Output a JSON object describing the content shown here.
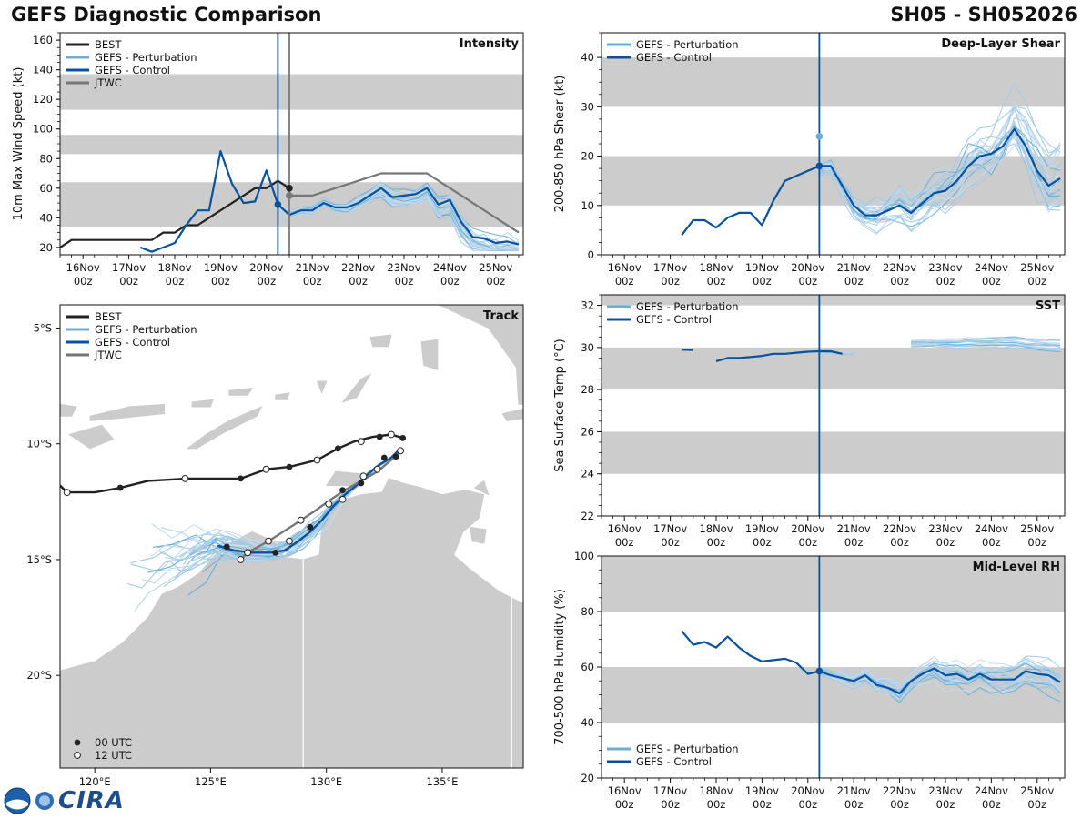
{
  "header": {
    "title": "GEFS Diagnostic Comparison",
    "storm": "SH05 - SH052026"
  },
  "colors": {
    "best": "#222222",
    "perturbation": "#6baed6",
    "control": "#08519c",
    "jtwc": "#777777",
    "band": "#cccccc",
    "land": "#cccccc"
  },
  "logo": {
    "text": "CIRA"
  },
  "time_ticks": [
    {
      "day": "16Nov",
      "hour": "00z"
    },
    {
      "day": "17Nov",
      "hour": "00z"
    },
    {
      "day": "18Nov",
      "hour": "00z"
    },
    {
      "day": "19Nov",
      "hour": "00z"
    },
    {
      "day": "20Nov",
      "hour": "00z"
    },
    {
      "day": "21Nov",
      "hour": "00z"
    },
    {
      "day": "22Nov",
      "hour": "00z"
    },
    {
      "day": "23Nov",
      "hour": "00z"
    },
    {
      "day": "24Nov",
      "hour": "00z"
    },
    {
      "day": "25Nov",
      "hour": "00z"
    }
  ],
  "chart_data": [
    {
      "type": "line",
      "title": "Intensity",
      "ylabel": "10m Max Wind Speed (kt)",
      "xlim": [
        -0.5,
        9.6
      ],
      "ylim": [
        15,
        165
      ],
      "yticks": [
        20,
        40,
        60,
        80,
        100,
        120,
        140,
        160
      ],
      "bands": [
        [
          34,
          64
        ],
        [
          83,
          96
        ],
        [
          113,
          137
        ]
      ],
      "vlines": [
        {
          "x": 4.25,
          "series": "control"
        },
        {
          "x": 4.5,
          "series": "jtwc"
        }
      ],
      "legend": [
        "BEST",
        "GEFS - Perturbation",
        "GEFS - Control",
        "JTWC"
      ],
      "series": [
        {
          "name": "BEST",
          "x": [
            -0.5,
            -0.25,
            0,
            0.25,
            0.5,
            0.75,
            1,
            1.25,
            1.5,
            1.75,
            2,
            2.25,
            2.5,
            2.75,
            3,
            3.25,
            3.5,
            3.75,
            4,
            4.25,
            4.5
          ],
          "y": [
            20,
            25,
            25,
            25,
            25,
            25,
            25,
            25,
            25,
            30,
            30,
            35,
            35,
            40,
            45,
            50,
            55,
            60,
            60,
            65,
            60
          ]
        },
        {
          "name": "GEFS - Control",
          "x": [
            1.25,
            1.5,
            1.75,
            2,
            2.25,
            2.5,
            2.75,
            3,
            3.25,
            3.5,
            3.75,
            4,
            4.25,
            4.5,
            4.75,
            5,
            5.25,
            5.5,
            5.75,
            6,
            6.25,
            6.5,
            6.75,
            7,
            7.25,
            7.5,
            7.75,
            8,
            8.25,
            8.5,
            8.75,
            9,
            9.25,
            9.5
          ],
          "y": [
            20,
            17,
            20,
            23,
            35,
            45,
            45,
            85,
            63,
            50,
            51,
            72,
            49,
            42,
            45,
            45,
            50,
            47,
            47,
            50,
            55,
            60,
            54,
            55,
            56,
            60,
            49,
            52,
            37,
            27,
            26,
            23,
            24,
            22
          ]
        },
        {
          "name": "JTWC",
          "x": [
            4.5,
            5,
            5.5,
            6,
            6.5,
            7,
            7.5,
            9.5
          ],
          "y": [
            55,
            55,
            60,
            65,
            70,
            70,
            70,
            30
          ]
        }
      ],
      "markers": [
        {
          "x": 4.25,
          "y": 49,
          "series": "control"
        },
        {
          "x": 4.5,
          "y": 60,
          "series": "best"
        },
        {
          "x": 4.5,
          "y": 55,
          "series": "jtwc"
        }
      ]
    },
    {
      "type": "line",
      "title": "Deep-Layer Shear",
      "ylabel": "200-850 hPa Shear (kt)",
      "xlim": [
        -0.5,
        9.6
      ],
      "ylim": [
        0,
        45
      ],
      "yticks": [
        0,
        10,
        20,
        30,
        40
      ],
      "bands": [
        [
          10,
          20
        ],
        [
          30,
          40
        ]
      ],
      "vlines": [
        {
          "x": 4.25,
          "series": "control"
        }
      ],
      "legend": [
        "GEFS - Perturbation",
        "GEFS - Control"
      ],
      "series": [
        {
          "name": "GEFS - Control",
          "x": [
            1.25,
            1.5,
            1.75,
            2,
            2.25,
            2.5,
            2.75,
            3,
            3.25,
            3.5,
            3.75,
            4,
            4.25,
            4.5,
            4.75,
            5,
            5.25,
            5.5,
            5.75,
            6,
            6.25,
            6.5,
            6.75,
            7,
            7.25,
            7.5,
            7.75,
            8,
            8.25,
            8.5,
            8.75,
            9,
            9.25,
            9.5
          ],
          "y": [
            4,
            7,
            7,
            5.5,
            7.5,
            8.5,
            8.5,
            6,
            11,
            15,
            16,
            17,
            18,
            18,
            14,
            10,
            8,
            8,
            9,
            10,
            8.5,
            10.5,
            12.5,
            13,
            15,
            18,
            20,
            20.5,
            22,
            25.5,
            22,
            17,
            14,
            15.5
          ]
        }
      ],
      "markers": [
        {
          "x": 4.25,
          "y": 18,
          "series": "control"
        },
        {
          "x": 4.25,
          "y": 24,
          "series": "perturbation"
        }
      ]
    },
    {
      "type": "line",
      "title": "SST",
      "ylabel": "Sea Surface Temp (°C)",
      "xlim": [
        -0.5,
        9.6
      ],
      "ylim": [
        22,
        32.5
      ],
      "yticks": [
        22,
        24,
        26,
        28,
        30,
        32
      ],
      "bands": [
        [
          24,
          26
        ],
        [
          28,
          30
        ],
        [
          32,
          32.5
        ]
      ],
      "vlines": [
        {
          "x": 4.25,
          "series": "control"
        }
      ],
      "legend": [
        "GEFS - Perturbation",
        "GEFS - Control"
      ],
      "series": [
        {
          "name": "GEFS - Control",
          "segments": [
            {
              "x": [
                1.25,
                1.5
              ],
              "y": [
                29.9,
                29.88
              ]
            },
            {
              "x": [
                2,
                2.25,
                2.5,
                2.75,
                3,
                3.25,
                3.5,
                3.75,
                4,
                4.25,
                4.5,
                4.75
              ],
              "y": [
                29.35,
                29.5,
                29.5,
                29.55,
                29.6,
                29.7,
                29.7,
                29.75,
                29.8,
                29.82,
                29.82,
                29.7
              ]
            }
          ]
        }
      ]
    },
    {
      "type": "line",
      "title": "Mid-Level RH",
      "ylabel": "700-500 hPa Humidity (%)",
      "xlim": [
        -0.5,
        9.6
      ],
      "ylim": [
        20,
        100
      ],
      "yticks": [
        20,
        40,
        60,
        80,
        100
      ],
      "bands": [
        [
          40,
          60
        ],
        [
          80,
          100
        ]
      ],
      "vlines": [
        {
          "x": 4.25,
          "series": "control"
        }
      ],
      "legend": [
        "GEFS - Perturbation",
        "GEFS - Control"
      ],
      "series": [
        {
          "name": "GEFS - Control",
          "x": [
            1.25,
            1.5,
            1.75,
            2,
            2.25,
            2.5,
            2.75,
            3,
            3.25,
            3.5,
            3.75,
            4,
            4.25,
            4.5,
            4.75,
            5,
            5.25,
            5.5,
            5.75,
            6,
            6.25,
            6.5,
            6.75,
            7,
            7.25,
            7.5,
            7.75,
            8,
            8.25,
            8.5,
            8.75,
            9,
            9.25,
            9.5
          ],
          "y": [
            73,
            68,
            69,
            67,
            71,
            67,
            64,
            62,
            62.5,
            63,
            61.5,
            57.5,
            58.5,
            57,
            56,
            55,
            57,
            53.5,
            52.5,
            50.5,
            55,
            57.5,
            59.5,
            57,
            57.5,
            55.5,
            57.5,
            55.5,
            55.5,
            55.5,
            58.5,
            57.5,
            57,
            54.5
          ]
        }
      ],
      "markers": [
        {
          "x": 4.25,
          "y": 58.5,
          "series": "control"
        }
      ]
    },
    {
      "type": "map",
      "title": "Track",
      "lon_range": [
        118.5,
        138.5
      ],
      "lat_range": [
        -24,
        -4
      ],
      "xticks": [
        {
          "v": 120,
          "label": "120°E"
        },
        {
          "v": 125,
          "label": "125°E"
        },
        {
          "v": 130,
          "label": "130°E"
        },
        {
          "v": 135,
          "label": "135°E"
        }
      ],
      "yticks": [
        {
          "v": -5,
          "label": "5°S"
        },
        {
          "v": -10,
          "label": "10°S"
        },
        {
          "v": -15,
          "label": "15°S"
        },
        {
          "v": -20,
          "label": "20°S"
        }
      ],
      "legend": [
        "BEST",
        "GEFS - Perturbation",
        "GEFS - Control",
        "JTWC"
      ],
      "marker_legend": [
        "00 UTC",
        "12 UTC"
      ],
      "series": [
        {
          "name": "BEST",
          "lon": [
            118.5,
            118.8,
            119.2,
            120,
            121.1,
            122.3,
            124,
            125.5,
            126.3,
            127.4,
            128.4,
            129.6,
            130.5,
            131.2,
            132,
            132.8,
            133.3
          ],
          "lat": [
            -11.8,
            -12.1,
            -12.1,
            -12.1,
            -11.9,
            -11.6,
            -11.5,
            -11.5,
            -11.5,
            -11.1,
            -11.0,
            -10.7,
            -10.2,
            -9.9,
            -9.7,
            -9.6,
            -9.75
          ]
        },
        {
          "name": "GEFS - Control",
          "lon": [
            125.3,
            126,
            126.8,
            127.6,
            128.2,
            128.8,
            129.3,
            129.8,
            130.3,
            130.8,
            131.3,
            131.8,
            132.3,
            132.8,
            133.2
          ],
          "lat": [
            -14.4,
            -14.6,
            -14.7,
            -14.7,
            -14.6,
            -14.2,
            -13.8,
            -13.3,
            -12.7,
            -12.2,
            -11.8,
            -11.3,
            -10.9,
            -10.6,
            -10.2
          ]
        },
        {
          "name": "JTWC",
          "lon": [
            126.3,
            126.6,
            127.5,
            128.6,
            129.5,
            130.2,
            130.8,
            131.5,
            132.2,
            132.8,
            133.2
          ],
          "lat": [
            -15.0,
            -14.7,
            -14.2,
            -13.5,
            -12.9,
            -12.4,
            -12.0,
            -11.6,
            -11.2,
            -10.7,
            -10.3
          ]
        }
      ],
      "markers_00z": [
        {
          "lon": 121.1,
          "lat": -11.9
        },
        {
          "lon": 126.3,
          "lat": -11.5
        },
        {
          "lon": 128.4,
          "lat": -11.0
        },
        {
          "lon": 130.5,
          "lat": -10.2
        },
        {
          "lon": 132.3,
          "lat": -9.7
        },
        {
          "lon": 133.3,
          "lat": -9.75
        },
        {
          "lon": 125.7,
          "lat": -14.45
        },
        {
          "lon": 127.8,
          "lat": -14.7
        },
        {
          "lon": 129.3,
          "lat": -13.6
        },
        {
          "lon": 130.7,
          "lat": -12.0
        },
        {
          "lon": 131.5,
          "lat": -11.7
        },
        {
          "lon": 132.5,
          "lat": -10.6
        },
        {
          "lon": 133.0,
          "lat": -10.55
        }
      ],
      "markers_12z": [
        {
          "lon": 118.8,
          "lat": -12.1
        },
        {
          "lon": 123.9,
          "lat": -11.5
        },
        {
          "lon": 127.4,
          "lat": -11.1
        },
        {
          "lon": 129.6,
          "lat": -10.7
        },
        {
          "lon": 131.5,
          "lat": -9.9
        },
        {
          "lon": 132.8,
          "lat": -9.6
        },
        {
          "lon": 126.3,
          "lat": -15.0
        },
        {
          "lon": 126.6,
          "lat": -14.7
        },
        {
          "lon": 127.5,
          "lat": -14.2
        },
        {
          "lon": 128.4,
          "lat": -14.2
        },
        {
          "lon": 128.9,
          "lat": -13.3
        },
        {
          "lon": 130.1,
          "lat": -12.6
        },
        {
          "lon": 130.7,
          "lat": -12.4
        },
        {
          "lon": 131.6,
          "lat": -11.4
        },
        {
          "lon": 132.2,
          "lat": -11.1
        },
        {
          "lon": 133.2,
          "lat": -10.3
        }
      ]
    }
  ]
}
